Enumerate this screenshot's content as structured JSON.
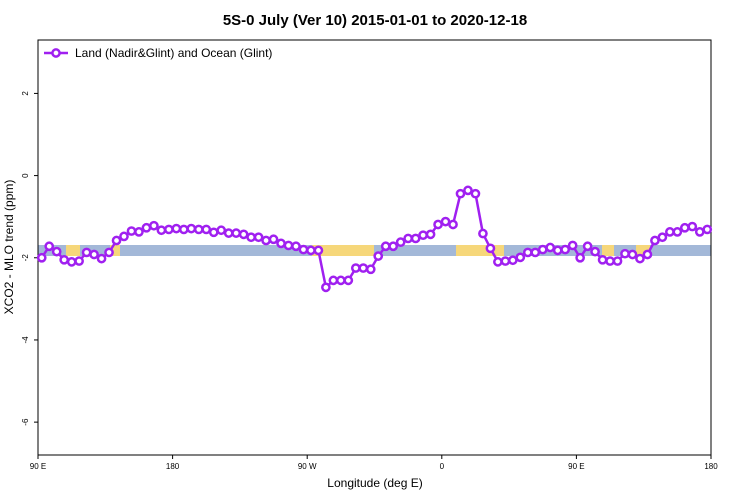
{
  "chart_data": {
    "type": "line",
    "title": "5S-0 July (Ver 10)   2015-01-01 to 2020-12-18",
    "x_label": "Longitude (deg E)",
    "y_label": "XCO2 - MLO trend (ppm)",
    "xlim": [
      90,
      540
    ],
    "ylim": [
      -6.8,
      3.3
    ],
    "xticks": [
      {
        "value": 90,
        "label": "90 E"
      },
      180,
      {
        "value": 270,
        "label": "90 W"
      },
      {
        "value": 360,
        "label": "0"
      },
      {
        "value": 450,
        "label": "90 E"
      },
      {
        "value": 540,
        "label": "180"
      }
    ],
    "yticks": [
      2,
      0,
      -2,
      -4,
      -6
    ],
    "legend": "top-left",
    "x": [
      92.5,
      97.5,
      102.5,
      107.5,
      112.5,
      117.5,
      122.5,
      127.5,
      132.5,
      137.5,
      142.5,
      147.5,
      152.5,
      157.5,
      162.5,
      167.5,
      172.5,
      177.5,
      182.5,
      187.5,
      192.5,
      197.5,
      202.5,
      207.5,
      212.5,
      217.5,
      222.5,
      227.5,
      232.5,
      237.5,
      242.5,
      247.5,
      252.5,
      257.5,
      262.5,
      267.5,
      272.5,
      277.5,
      282.5,
      287.5,
      292.5,
      297.5,
      302.5,
      307.5,
      312.5,
      317.5,
      322.5,
      327.5,
      332.5,
      337.5,
      342.5,
      347.5,
      352.5,
      357.5,
      362.5,
      367.5,
      372.5,
      377.5,
      382.5,
      387.5,
      392.5,
      397.5,
      402.5,
      407.5,
      412.5,
      417.5,
      422.5,
      427.5,
      432.5,
      437.5,
      442.5,
      447.5,
      452.5,
      457.5,
      462.5,
      467.5,
      472.5,
      477.5,
      482.5,
      487.5,
      492.5,
      497.5,
      502.5,
      507.5,
      512.5,
      517.5,
      522.5,
      527.5,
      532.5,
      537.5
    ],
    "series": [
      {
        "name": "Land (Nadir&Glint) and Ocean (Glint)",
        "color": "#a020f0",
        "values": [
          -2.0,
          -1.72,
          -1.85,
          -2.05,
          -2.1,
          -2.08,
          -1.87,
          -1.92,
          -2.02,
          -1.87,
          -1.58,
          -1.48,
          -1.35,
          -1.37,
          -1.27,
          -1.22,
          -1.33,
          -1.31,
          -1.29,
          -1.31,
          -1.29,
          -1.31,
          -1.31,
          -1.38,
          -1.33,
          -1.4,
          -1.4,
          -1.43,
          -1.5,
          -1.5,
          -1.58,
          -1.55,
          -1.65,
          -1.7,
          -1.72,
          -1.8,
          -1.82,
          -1.82,
          -2.72,
          -2.55,
          -2.55,
          -2.55,
          -2.25,
          -2.25,
          -2.28,
          -1.96,
          -1.72,
          -1.72,
          -1.62,
          -1.53,
          -1.53,
          -1.45,
          -1.43,
          -1.19,
          -1.12,
          -1.19,
          -0.44,
          -0.36,
          -0.44,
          -1.41,
          -1.77,
          -2.1,
          -2.08,
          -2.06,
          -1.99,
          -1.87,
          -1.87,
          -1.8,
          -1.75,
          -1.82,
          -1.8,
          -1.7,
          -2.0,
          -1.72,
          -1.85,
          -2.05,
          -2.08,
          -2.08,
          -1.9,
          -1.92,
          -2.02,
          -1.92,
          -1.58,
          -1.5,
          -1.37,
          -1.37,
          -1.27,
          -1.24,
          -1.37,
          -1.31
        ]
      }
    ]
  }
}
